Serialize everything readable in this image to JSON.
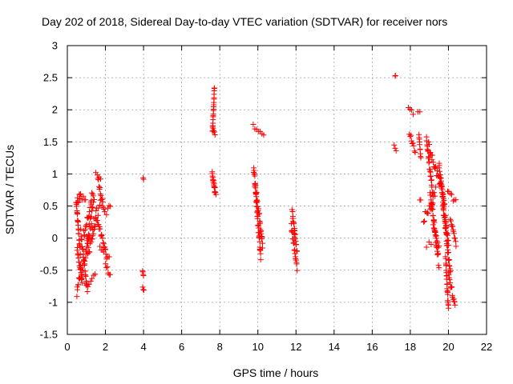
{
  "chart_data": {
    "type": "scatter",
    "title": "Day 202 of 2018, Sidereal Day-to-day VTEC variation (SDTVAR) for receiver nors",
    "xlabel": "GPS time / hours",
    "ylabel": "SDTVAR / TECUs",
    "xlim": [
      0,
      22
    ],
    "ylim": [
      -1.5,
      3
    ],
    "xticks": [
      "0",
      "2",
      "4",
      "6",
      "8",
      "10",
      "12",
      "14",
      "16",
      "18",
      "20",
      "22"
    ],
    "yticks": [
      "-1.5",
      "-1",
      "-0.5",
      "0",
      "0.5",
      "1",
      "1.5",
      "2",
      "2.5",
      "3"
    ],
    "grid": true,
    "marker": "+",
    "color": "#ff0000",
    "segments": [
      [
        0.45,
        0.7,
        0.5,
        0.74,
        0.1
      ],
      [
        0.48,
        0.68,
        0.55,
        -0.25,
        -0.05
      ],
      [
        0.5,
        0.72,
        -0.85,
        -0.45,
        0.06
      ],
      [
        0.52,
        0.78,
        -0.15,
        -0.7,
        0.05
      ],
      [
        0.65,
        0.95,
        0.7,
        0.55,
        0.05
      ],
      [
        0.7,
        1.05,
        0.1,
        -0.8,
        0.06
      ],
      [
        0.75,
        1.2,
        -0.55,
        0.1,
        0.08
      ],
      [
        0.85,
        1.35,
        0.05,
        0.7,
        0.08
      ],
      [
        1.0,
        1.45,
        -0.75,
        -0.55,
        0.05
      ],
      [
        1.0,
        1.8,
        0.0,
        0.55,
        0.12
      ],
      [
        1.05,
        1.5,
        -0.3,
        0.25,
        0.1
      ],
      [
        1.2,
        1.4,
        0.3,
        0.55,
        0.06
      ],
      [
        1.5,
        1.75,
        1.05,
        0.95,
        0.04
      ],
      [
        1.55,
        2.05,
        0.3,
        -0.3,
        0.06
      ],
      [
        1.6,
        1.95,
        0.9,
        0.45,
        0.05
      ],
      [
        1.7,
        2.2,
        -0.1,
        -0.3,
        0.06
      ],
      [
        2.0,
        2.25,
        -0.4,
        -0.58,
        0.04
      ],
      [
        2.05,
        2.25,
        0.4,
        0.5,
        0.04
      ],
      [
        3.98,
        4.0,
        0.93,
        0.91,
        0.01
      ],
      [
        3.95,
        4.0,
        -0.5,
        -0.6,
        0.02
      ],
      [
        3.95,
        4.02,
        -0.75,
        -0.82,
        0.02
      ],
      [
        7.62,
        7.72,
        1.65,
        2.35,
        0.02
      ],
      [
        7.62,
        7.75,
        1.75,
        1.6,
        0.02
      ],
      [
        7.6,
        7.75,
        1.05,
        0.7,
        0.03
      ],
      [
        7.62,
        7.8,
        0.95,
        0.7,
        0.03
      ],
      [
        9.75,
        10.3,
        1.75,
        1.62,
        0.03
      ],
      [
        9.78,
        10.15,
        1.1,
        -0.3,
        0.06
      ],
      [
        9.85,
        10.25,
        0.85,
        -0.1,
        0.06
      ],
      [
        11.8,
        11.95,
        0.4,
        0.0,
        0.05
      ],
      [
        11.75,
        12.05,
        0.2,
        -0.45,
        0.06
      ],
      [
        11.9,
        12.05,
        0.15,
        -0.2,
        0.05
      ],
      [
        17.2,
        17.22,
        2.53,
        2.53,
        0.01
      ],
      [
        17.15,
        17.25,
        1.45,
        1.38,
        0.02
      ],
      [
        17.9,
        18.15,
        2.05,
        1.95,
        0.02
      ],
      [
        17.95,
        18.25,
        1.65,
        1.35,
        0.04
      ],
      [
        18.4,
        18.5,
        1.97,
        1.97,
        0.01
      ],
      [
        18.45,
        18.55,
        1.6,
        1.25,
        0.02
      ],
      [
        18.5,
        18.55,
        0.6,
        0.6,
        0.01
      ],
      [
        18.7,
        19.35,
        0.25,
        0.7,
        0.1
      ],
      [
        18.85,
        19.2,
        1.55,
        0.6,
        0.06
      ],
      [
        18.85,
        19.1,
        -0.1,
        -0.1,
        0.05
      ],
      [
        18.95,
        19.55,
        1.45,
        0.85,
        0.06
      ],
      [
        19.05,
        19.5,
        0.7,
        -0.4,
        0.08
      ],
      [
        19.2,
        19.5,
        0.2,
        -0.15,
        0.05
      ],
      [
        19.5,
        20.0,
        1.15,
        -0.1,
        0.06
      ],
      [
        19.55,
        19.8,
        0.95,
        0.55,
        0.05
      ],
      [
        19.7,
        20.1,
        0.55,
        -0.55,
        0.05
      ],
      [
        19.85,
        20.0,
        -0.3,
        -1.1,
        0.04
      ],
      [
        19.95,
        20.4,
        0.75,
        0.55,
        0.06
      ],
      [
        20.0,
        20.35,
        -0.55,
        -1.07,
        0.05
      ],
      [
        20.1,
        20.4,
        0.3,
        -0.1,
        0.04
      ]
    ]
  }
}
